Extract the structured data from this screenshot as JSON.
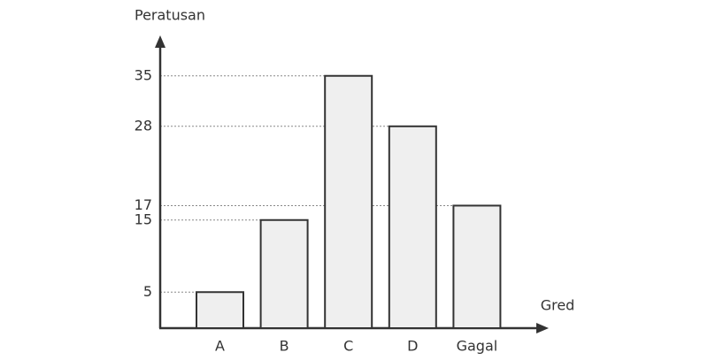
{
  "chart_data": {
    "type": "bar",
    "y_label": "Peratusan",
    "x_label": "Gred",
    "categories": [
      "A",
      "B",
      "C",
      "D",
      "Gagal"
    ],
    "values": [
      5,
      15,
      35,
      28,
      17
    ],
    "color": "#efefef",
    "ylim": [
      0,
      40
    ],
    "yticks": [
      5,
      15,
      17,
      28,
      35
    ],
    "grid": true
  }
}
